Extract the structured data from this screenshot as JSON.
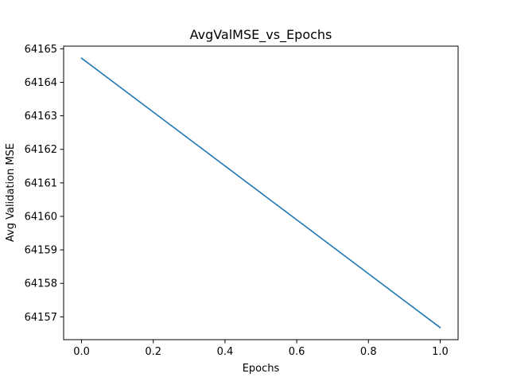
{
  "chart_data": {
    "type": "line",
    "title": "AvgValMSE_vs_Epochs",
    "xlabel": "Epochs",
    "ylabel": "Avg Validation MSE",
    "xlim": [
      -0.05,
      1.05
    ],
    "ylim": [
      64156.32,
      64165.08
    ],
    "xticks": [
      0.0,
      0.2,
      0.4,
      0.6,
      0.8,
      1.0
    ],
    "xtick_labels": [
      "0.0",
      "0.2",
      "0.4",
      "0.6",
      "0.8",
      "1.0"
    ],
    "yticks": [
      64157,
      64158,
      64159,
      64160,
      64161,
      64162,
      64163,
      64164,
      64165
    ],
    "ytick_labels": [
      "64157",
      "64158",
      "64159",
      "64160",
      "64161",
      "64162",
      "64163",
      "64164",
      "64165"
    ],
    "grid": false,
    "series": [
      {
        "x": [
          0,
          1
        ],
        "values": [
          64164.72,
          64156.68
        ],
        "color": "#1f77b4"
      }
    ]
  }
}
